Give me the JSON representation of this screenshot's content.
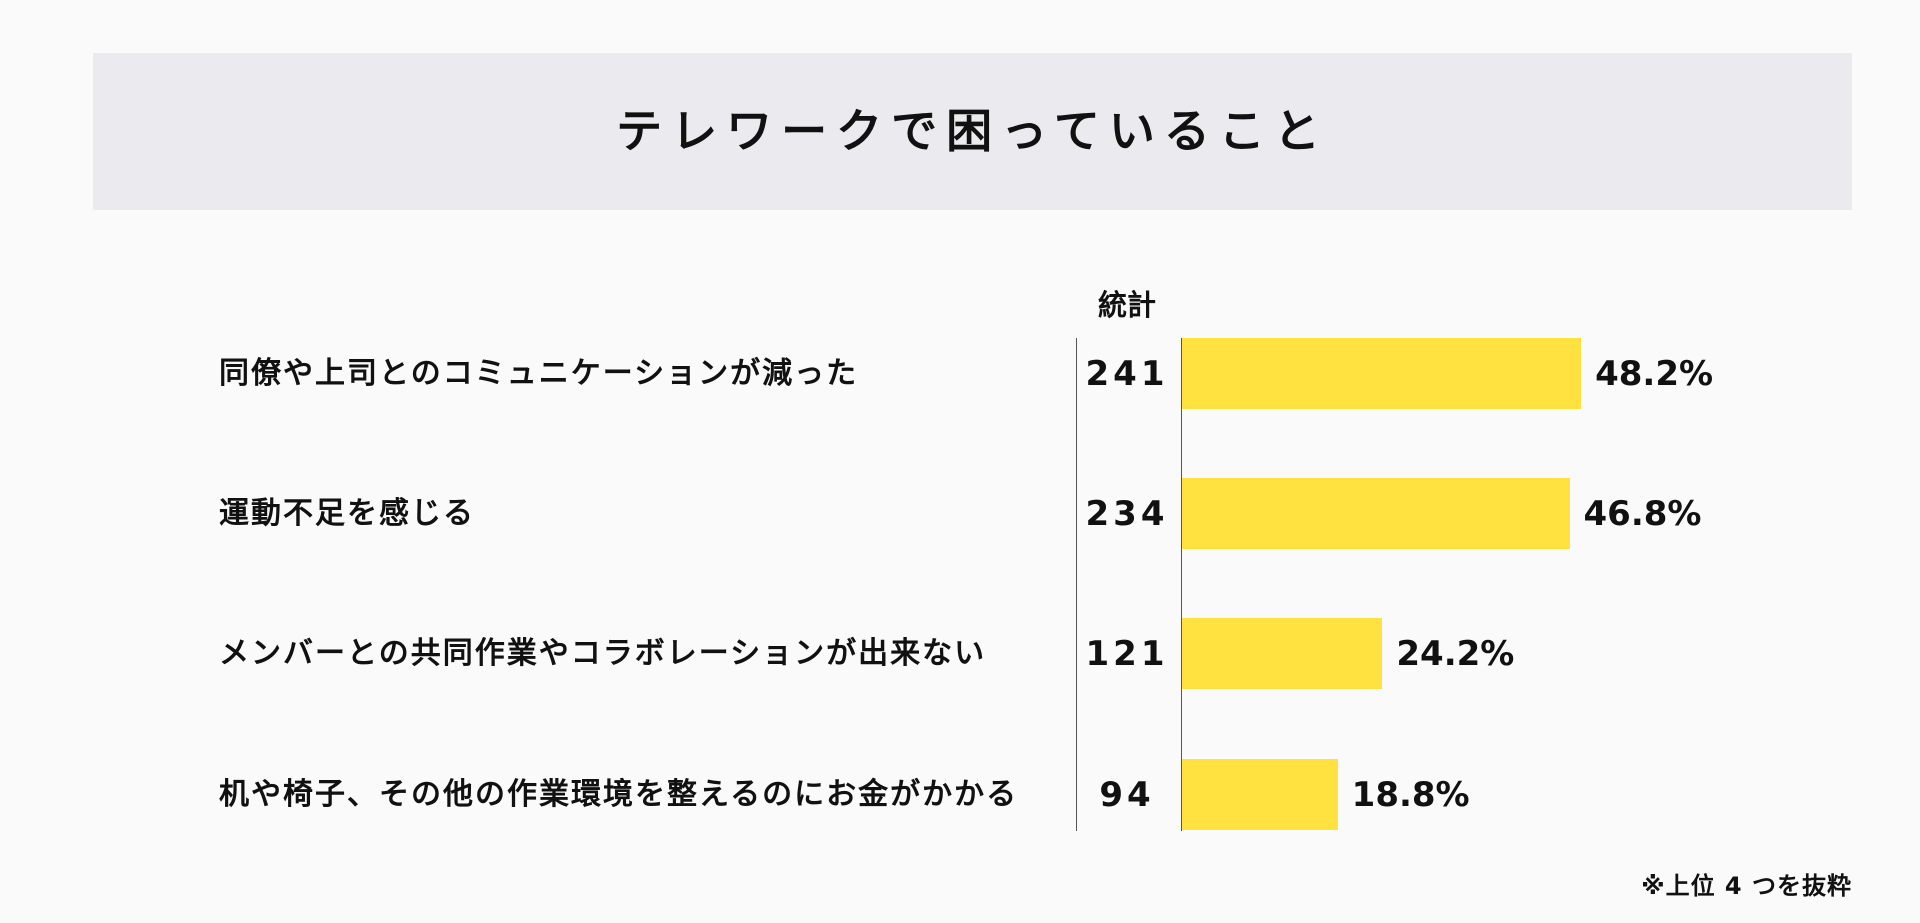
{
  "chart_data": {
    "type": "bar",
    "orientation": "horizontal",
    "title": "テレワークで困っていること",
    "column_header": "統計",
    "categories": [
      "同僚や上司とのコミュニケーションが減った",
      "運動不足を感じる",
      "メンバーとの共同作業やコラボレーションが出来ない",
      "机や椅子、その他の作業環境を整えるのにお金がかかる"
    ],
    "counts": [
      "241",
      "234",
      "121",
      "94"
    ],
    "percent_labels": [
      "48.2%",
      "46.8%",
      "24.2%",
      "18.8%"
    ],
    "values": [
      48.2,
      46.8,
      24.2,
      18.8
    ],
    "bar_color": "#ffe23f",
    "footnote": "※上位 4 つを抜粋"
  }
}
